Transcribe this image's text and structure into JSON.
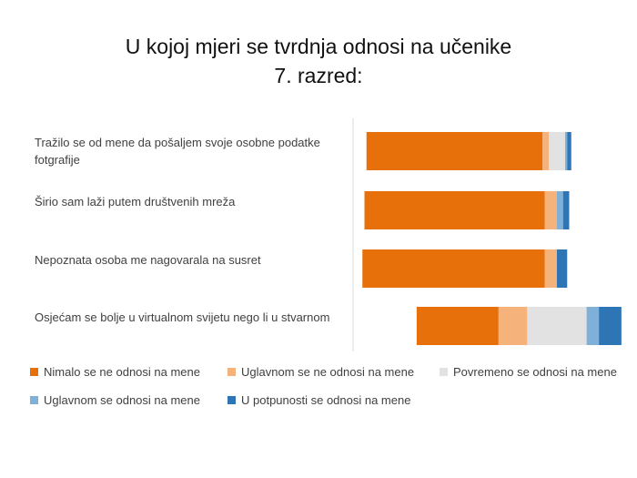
{
  "chart_data": {
    "type": "bar",
    "orientation": "horizontal",
    "stacked": "diverging",
    "title": "U kojoj mjeri se tvrdnja odnosi na učenike",
    "subtitle": "7. razred:",
    "categories": [
      "Tražilo se od mene da pošaljem svoje osobne podatke fotgrafije",
      "Širio sam laži putem društvenih mreža",
      "Nepoznata osoba me nagovarala na susret",
      "Osjećam se bolje u virtualnom svijetu nego li u stvarnom"
    ],
    "series": [
      {
        "name": "Nimalo se ne odnosi na mene",
        "color": "#e8700a",
        "values": [
          86,
          88,
          89,
          40
        ]
      },
      {
        "name": "Uglavnom se ne odnosi na mene",
        "color": "#f5b27a",
        "values": [
          3,
          6,
          6,
          14
        ]
      },
      {
        "name": "Povremeno se odnosi na mene",
        "color": "#e2e2e2",
        "values": [
          8,
          0,
          0,
          29
        ]
      },
      {
        "name": "Uglavnom se odnosi na mene",
        "color": "#7fb0d8",
        "values": [
          1,
          3,
          0,
          6
        ]
      },
      {
        "name": "U potpunosti se odnosi na mene",
        "color": "#2e75b6",
        "values": [
          2,
          3,
          5,
          11
        ]
      }
    ],
    "legend": "bottom"
  }
}
